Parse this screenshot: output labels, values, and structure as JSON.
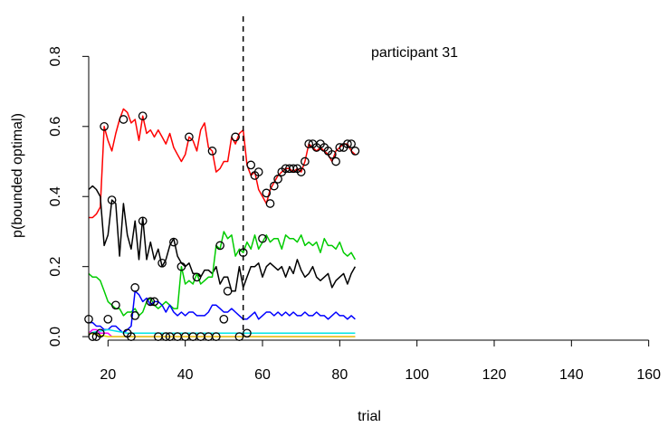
{
  "chart_data": {
    "type": "line",
    "annotation": "participant 31",
    "xlabel": "trial",
    "ylabel": "p(bounded optimal)",
    "xlim": [
      15,
      165
    ],
    "ylim": [
      -0.01,
      0.93
    ],
    "x_ticks": [
      20,
      40,
      60,
      80,
      100,
      120,
      140,
      160
    ],
    "y_ticks": [
      0.0,
      0.2,
      0.4,
      0.6,
      0.8
    ],
    "x_tick_labels": [
      "20",
      "40",
      "60",
      "80",
      "100",
      "120",
      "140",
      "160"
    ],
    "y_tick_labels": [
      "0.0",
      "0.2",
      "0.4",
      "0.6",
      "0.8"
    ],
    "vline_x": 55,
    "grid": false,
    "colors": {
      "red": "#ff0000",
      "black": "#000000",
      "green": "#00cc00",
      "blue": "#0000ff",
      "cyan": "#00e5e5",
      "magenta": "#ff00ff",
      "yellow": "#e6d800"
    },
    "series": [
      {
        "color": "#ff0000",
        "x": [
          15,
          16,
          17,
          18,
          19,
          20,
          21,
          22,
          23,
          24,
          25,
          26,
          27,
          28,
          29,
          30,
          31,
          32,
          33,
          34,
          35,
          36,
          37,
          38,
          39,
          40,
          41,
          42,
          43,
          44,
          45,
          46,
          47,
          48,
          49,
          50,
          51,
          52,
          53,
          54,
          55,
          56,
          57,
          58,
          59,
          60,
          61,
          62,
          63,
          64,
          65,
          66,
          67,
          68,
          69,
          70,
          71,
          72,
          73,
          74,
          75,
          76,
          77,
          78,
          79,
          80,
          81,
          82,
          83,
          84
        ],
        "y": [
          0.34,
          0.34,
          0.35,
          0.37,
          0.6,
          0.56,
          0.53,
          0.58,
          0.62,
          0.65,
          0.64,
          0.61,
          0.62,
          0.56,
          0.63,
          0.58,
          0.59,
          0.57,
          0.59,
          0.57,
          0.55,
          0.58,
          0.54,
          0.52,
          0.5,
          0.52,
          0.57,
          0.56,
          0.53,
          0.59,
          0.61,
          0.54,
          0.53,
          0.47,
          0.48,
          0.5,
          0.5,
          0.57,
          0.55,
          0.58,
          0.59,
          0.49,
          0.46,
          0.47,
          0.42,
          0.4,
          0.38,
          0.42,
          0.44,
          0.46,
          0.47,
          0.48,
          0.48,
          0.47,
          0.48,
          0.47,
          0.5,
          0.55,
          0.54,
          0.53,
          0.54,
          0.53,
          0.52,
          0.5,
          0.53,
          0.54,
          0.55,
          0.55,
          0.53,
          0.52
        ]
      },
      {
        "color": "#000000",
        "x": [
          15,
          16,
          17,
          18,
          19,
          20,
          21,
          22,
          23,
          24,
          25,
          26,
          27,
          28,
          29,
          30,
          31,
          32,
          33,
          34,
          35,
          36,
          37,
          38,
          39,
          40,
          41,
          42,
          43,
          44,
          45,
          46,
          47,
          48,
          49,
          50,
          51,
          52,
          53,
          54,
          55,
          56,
          57,
          58,
          59,
          60,
          61,
          62,
          63,
          64,
          65,
          66,
          67,
          68,
          69,
          70,
          71,
          72,
          73,
          74,
          75,
          76,
          77,
          78,
          79,
          80,
          81,
          82,
          83,
          84
        ],
        "y": [
          0.42,
          0.43,
          0.42,
          0.4,
          0.26,
          0.29,
          0.39,
          0.38,
          0.23,
          0.38,
          0.29,
          0.25,
          0.33,
          0.22,
          0.34,
          0.22,
          0.27,
          0.22,
          0.25,
          0.2,
          0.22,
          0.26,
          0.28,
          0.23,
          0.21,
          0.2,
          0.21,
          0.18,
          0.18,
          0.17,
          0.19,
          0.19,
          0.18,
          0.2,
          0.15,
          0.17,
          0.17,
          0.13,
          0.13,
          0.2,
          0.14,
          0.17,
          0.2,
          0.2,
          0.21,
          0.17,
          0.2,
          0.21,
          0.2,
          0.19,
          0.2,
          0.17,
          0.2,
          0.18,
          0.22,
          0.19,
          0.17,
          0.18,
          0.2,
          0.17,
          0.16,
          0.17,
          0.18,
          0.14,
          0.16,
          0.17,
          0.18,
          0.15,
          0.18,
          0.2
        ]
      },
      {
        "color": "#00cc00",
        "x": [
          15,
          16,
          17,
          18,
          19,
          20,
          21,
          22,
          23,
          24,
          25,
          26,
          27,
          28,
          29,
          30,
          31,
          32,
          33,
          34,
          35,
          36,
          37,
          38,
          39,
          40,
          41,
          42,
          43,
          44,
          45,
          46,
          47,
          48,
          49,
          50,
          51,
          52,
          53,
          54,
          55,
          56,
          57,
          58,
          59,
          60,
          61,
          62,
          63,
          64,
          65,
          66,
          67,
          68,
          69,
          70,
          71,
          72,
          73,
          74,
          75,
          76,
          77,
          78,
          79,
          80,
          81,
          82,
          83,
          84
        ],
        "y": [
          0.18,
          0.17,
          0.17,
          0.16,
          0.13,
          0.1,
          0.09,
          0.08,
          0.08,
          0.06,
          0.07,
          0.07,
          0.08,
          0.06,
          0.07,
          0.1,
          0.11,
          0.09,
          0.08,
          0.09,
          0.1,
          0.09,
          0.08,
          0.08,
          0.2,
          0.15,
          0.16,
          0.15,
          0.18,
          0.15,
          0.16,
          0.17,
          0.17,
          0.26,
          0.25,
          0.3,
          0.28,
          0.29,
          0.23,
          0.25,
          0.24,
          0.27,
          0.25,
          0.29,
          0.25,
          0.27,
          0.29,
          0.27,
          0.28,
          0.28,
          0.25,
          0.29,
          0.28,
          0.28,
          0.27,
          0.29,
          0.26,
          0.27,
          0.26,
          0.27,
          0.24,
          0.28,
          0.26,
          0.26,
          0.25,
          0.27,
          0.24,
          0.23,
          0.24,
          0.22
        ]
      },
      {
        "color": "#0000ff",
        "x": [
          15,
          16,
          17,
          18,
          19,
          20,
          21,
          22,
          23,
          24,
          25,
          26,
          27,
          28,
          29,
          30,
          31,
          32,
          33,
          34,
          35,
          36,
          37,
          38,
          39,
          40,
          41,
          42,
          43,
          44,
          45,
          46,
          47,
          48,
          49,
          50,
          51,
          52,
          53,
          54,
          55,
          56,
          57,
          58,
          59,
          60,
          61,
          62,
          63,
          64,
          65,
          66,
          67,
          68,
          69,
          70,
          71,
          72,
          73,
          74,
          75,
          76,
          77,
          78,
          79,
          80,
          81,
          82,
          83,
          84
        ],
        "y": [
          0.04,
          0.04,
          0.03,
          0.03,
          0.02,
          0.02,
          0.03,
          0.03,
          0.02,
          0.01,
          0.02,
          0.03,
          0.13,
          0.12,
          0.1,
          0.11,
          0.09,
          0.1,
          0.1,
          0.09,
          0.07,
          0.09,
          0.07,
          0.06,
          0.07,
          0.06,
          0.07,
          0.07,
          0.06,
          0.06,
          0.06,
          0.07,
          0.09,
          0.09,
          0.08,
          0.07,
          0.07,
          0.08,
          0.07,
          0.06,
          0.05,
          0.05,
          0.06,
          0.07,
          0.05,
          0.06,
          0.07,
          0.07,
          0.06,
          0.07,
          0.06,
          0.07,
          0.06,
          0.07,
          0.06,
          0.06,
          0.07,
          0.06,
          0.06,
          0.07,
          0.06,
          0.06,
          0.05,
          0.06,
          0.07,
          0.06,
          0.06,
          0.05,
          0.06,
          0.05
        ]
      },
      {
        "color": "#00e5e5",
        "x": [
          15,
          20,
          25,
          30,
          35,
          40,
          45,
          50,
          55,
          60,
          65,
          70,
          75,
          80,
          84
        ],
        "y": [
          0.01,
          0.02,
          0.01,
          0.01,
          0.01,
          0.01,
          0.01,
          0.01,
          0.01,
          0.01,
          0.01,
          0.01,
          0.01,
          0.01,
          0.01
        ]
      },
      {
        "color": "#ff00ff",
        "x": [
          15,
          16,
          17,
          18,
          19,
          20,
          21,
          22,
          23,
          24,
          25,
          30,
          35,
          40,
          50,
          60,
          70,
          84
        ],
        "y": [
          0.01,
          0.02,
          0.02,
          0.01,
          0.01,
          0.01,
          0.0,
          0.0,
          0.0,
          0.0,
          0.0,
          0.0,
          0.0,
          0.0,
          0.0,
          0.0,
          0.0,
          0.0
        ]
      },
      {
        "color": "#e6d800",
        "x": [
          15,
          20,
          25,
          30,
          35,
          40,
          45,
          50,
          55,
          60,
          65,
          70,
          75,
          80,
          84
        ],
        "y": [
          0.01,
          0.0,
          0.0,
          0.0,
          0.0,
          0.0,
          0.0,
          0.0,
          0.0,
          0.0,
          0.0,
          0.0,
          0.0,
          0.0,
          0.0
        ]
      }
    ],
    "choice_points": {
      "x": [
        19,
        27,
        29,
        24,
        41,
        47,
        53,
        57,
        58,
        59,
        61,
        62,
        63,
        64,
        65,
        66,
        67,
        68,
        69,
        70,
        71,
        72,
        73,
        74,
        75,
        76,
        77,
        78,
        79,
        80,
        81,
        82,
        83,
        84,
        21,
        29,
        34,
        43,
        51,
        37,
        60,
        49,
        39,
        50,
        22,
        55,
        27,
        31,
        32,
        15,
        16,
        17,
        18,
        20,
        26,
        33,
        35,
        36,
        38,
        40,
        42,
        44,
        46,
        48,
        25,
        54,
        56
      ],
      "y": [
        0.6,
        0.14,
        0.63,
        0.62,
        0.57,
        0.53,
        0.57,
        0.49,
        0.46,
        0.47,
        0.41,
        0.38,
        0.43,
        0.45,
        0.47,
        0.48,
        0.48,
        0.48,
        0.48,
        0.47,
        0.5,
        0.55,
        0.55,
        0.54,
        0.55,
        0.54,
        0.53,
        0.52,
        0.5,
        0.54,
        0.54,
        0.55,
        0.55,
        0.53,
        0.39,
        0.33,
        0.21,
        0.17,
        0.13,
        0.27,
        0.28,
        0.26,
        0.2,
        0.05,
        0.09,
        0.24,
        0.06,
        0.1,
        0.1,
        0.05,
        0.0,
        0.0,
        0.01,
        0.05,
        0.0,
        0.0,
        0.0,
        0.0,
        0.0,
        0.0,
        0.0,
        0.0,
        0.0,
        0.0,
        0.01,
        0.0,
        0.01
      ]
    }
  }
}
